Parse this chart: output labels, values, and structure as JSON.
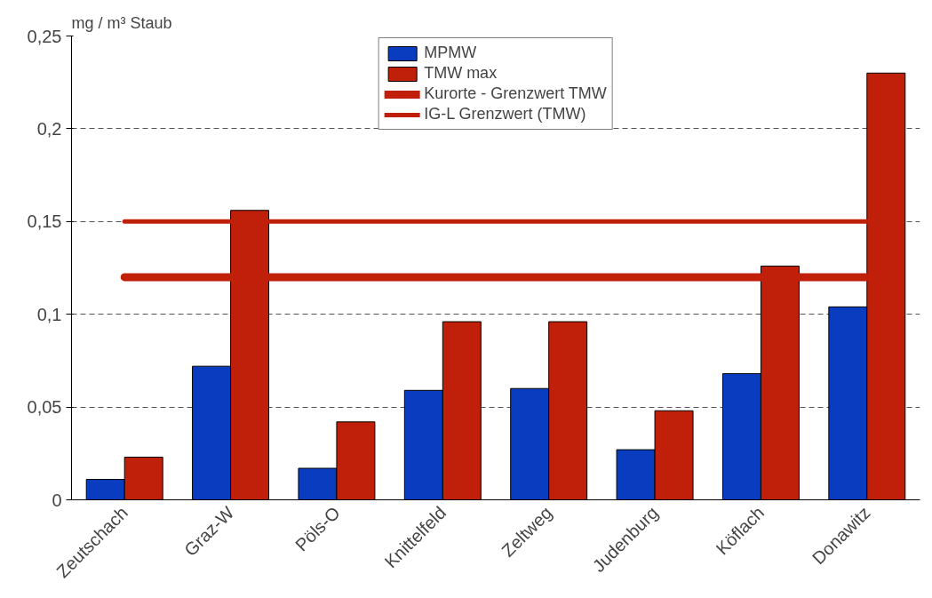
{
  "chart_data": {
    "type": "bar",
    "ylabel": "mg / m³ Staub",
    "categories": [
      "Zeutschach",
      "Graz-W",
      "Pöls-O",
      "Knittelfeld",
      "Zeltweg",
      "Judenburg",
      "Köflach",
      "Donawitz"
    ],
    "series": [
      {
        "name": "MPMW",
        "color": "#0a3cc0",
        "values": [
          0.011,
          0.072,
          0.017,
          0.059,
          0.06,
          0.027,
          0.068,
          0.104
        ]
      },
      {
        "name": "TMW max",
        "color": "#c0200a",
        "values": [
          0.023,
          0.156,
          0.042,
          0.096,
          0.096,
          0.048,
          0.126,
          0.23
        ]
      }
    ],
    "ref_lines": [
      {
        "axis": "y",
        "value": 0.12,
        "label": "Kurorte - Grenzwert TMW",
        "color": "#c0200a"
      },
      {
        "axis": "y",
        "value": 0.15,
        "label": "IG-L Grenzwert (TMW)",
        "color": "#c0200a"
      }
    ],
    "ylim": [
      0,
      0.25
    ],
    "yticks": [
      0,
      {
        "value": 0.05,
        "label": "0,05"
      },
      {
        "value": 0.1,
        "label": "0,1"
      },
      {
        "value": 0.15,
        "label": "0,15"
      },
      {
        "value": 0.2,
        "label": "0,2"
      },
      {
        "value": 0.25,
        "label": "0,25"
      }
    ],
    "grid": "y",
    "legend": "top"
  }
}
